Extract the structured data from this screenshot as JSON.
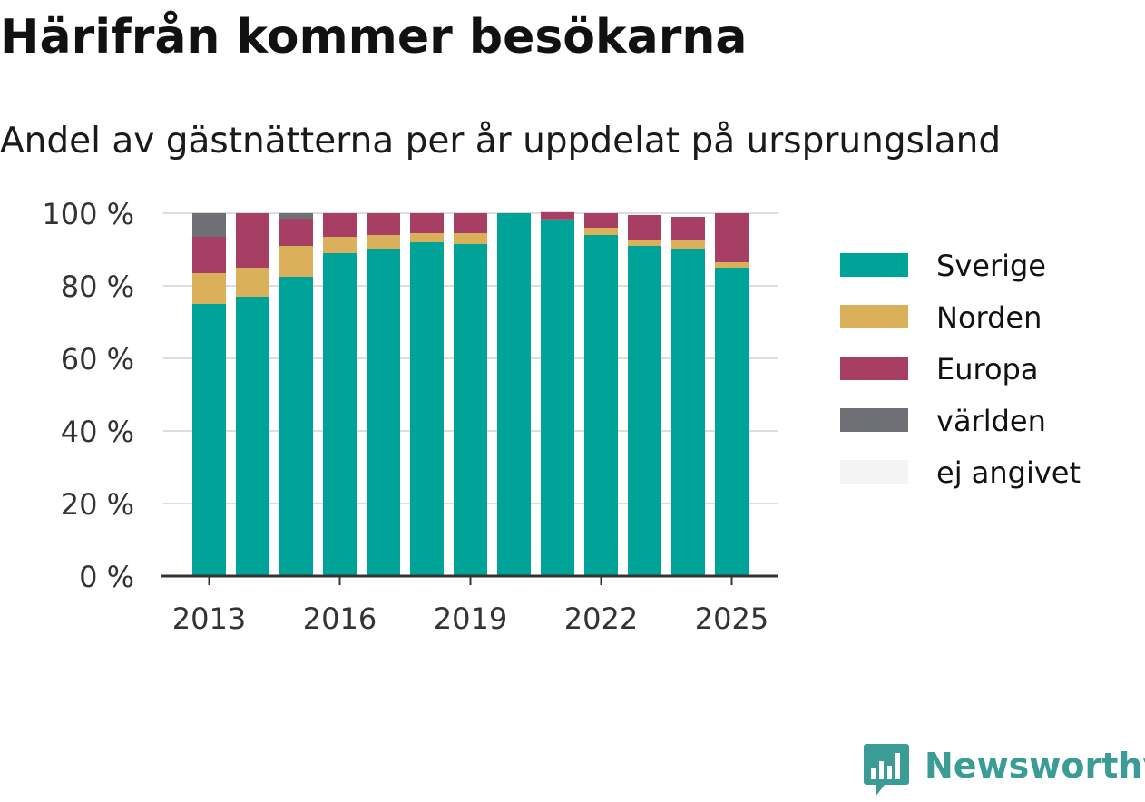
{
  "title": "Härifrån kommer besökarna",
  "subtitle": "Andel av gästnätterna per år uppdelat på ursprungsland",
  "brand": {
    "name": "Newsworthy",
    "icon": "chart-speech-bubble-icon",
    "color": "#3a9c94"
  },
  "chart_data": {
    "type": "bar",
    "stacked": true,
    "categories": [
      "2013",
      "2014",
      "2015",
      "2016",
      "2017",
      "2018",
      "2019",
      "2020",
      "2021",
      "2022",
      "2023",
      "2024",
      "2025"
    ],
    "x_tick_labels": [
      "2013",
      "2016",
      "2019",
      "2022",
      "2025"
    ],
    "y_tick_labels": [
      "0 %",
      "20 %",
      "40 %",
      "60 %",
      "80 %",
      "100 %"
    ],
    "ylim": [
      0,
      100
    ],
    "grid": true,
    "legend_position": "right",
    "xlabel": "",
    "ylabel": "",
    "series": [
      {
        "name": "Sverige",
        "color": "#00a398",
        "values": [
          75,
          77,
          82.5,
          89,
          90,
          92,
          91.5,
          100,
          98.3,
          94,
          91,
          90,
          85
        ]
      },
      {
        "name": "Norden",
        "color": "#dbb05a",
        "values": [
          8.5,
          8,
          8.5,
          4.5,
          4,
          2.5,
          3,
          0,
          0,
          2,
          1.5,
          2.5,
          1.5
        ]
      },
      {
        "name": "Europa",
        "color": "#a63f63",
        "values": [
          10,
          15,
          7.5,
          6.5,
          6,
          5.5,
          5.5,
          0,
          2,
          4,
          7,
          6.5,
          13.5
        ]
      },
      {
        "name": "världen",
        "color": "#6f6f76",
        "values": [
          6.5,
          0,
          1.5,
          0,
          0,
          0,
          0,
          0,
          0,
          0,
          0,
          0,
          0
        ]
      },
      {
        "name": "ej angivet",
        "color": "#f4f4f5",
        "values": [
          0,
          0,
          0,
          0,
          0,
          0,
          0,
          0,
          0,
          0,
          0,
          0,
          0
        ]
      }
    ]
  }
}
